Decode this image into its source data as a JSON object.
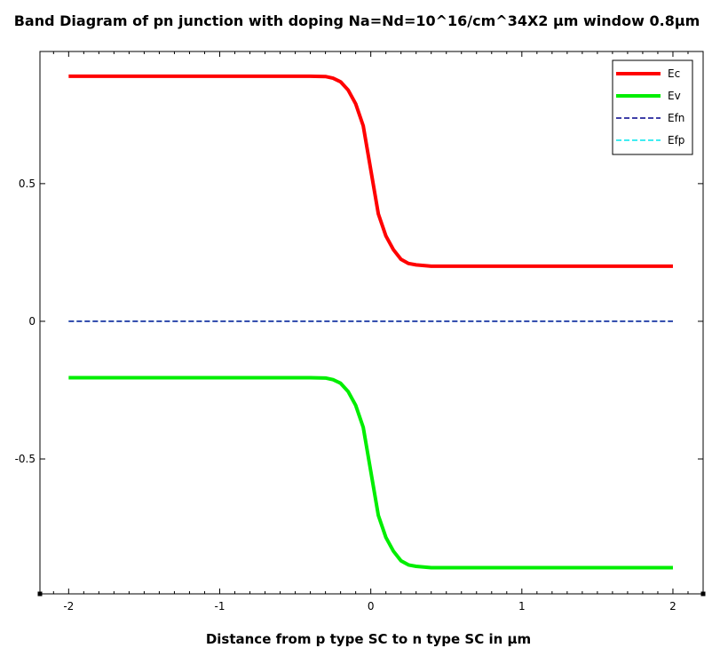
{
  "chart_data": {
    "type": "line",
    "title": "Band Diagram of pn junction with doping Na=Nd=10^16/cm^34X2 μm window 0.8μm",
    "xlabel": "Distance from p type SC to n type SC in μm",
    "ylabel": "",
    "xlim": [
      -2.19,
      2.2
    ],
    "ylim": [
      -0.99,
      0.98
    ],
    "xticks": [
      -2,
      -1,
      0,
      1,
      2
    ],
    "xtick_labels": [
      "-2",
      "-1",
      "0",
      "1",
      "2"
    ],
    "yticks": [
      -0.5,
      0,
      0.5
    ],
    "ytick_labels": [
      "-0.5",
      "0",
      "0.5"
    ],
    "grid": false,
    "legend_position": "top-right",
    "series": [
      {
        "name": "Ec",
        "color": "#ff0000",
        "style": "solid",
        "x": [
          -2.0,
          -1.0,
          -0.4,
          -0.3,
          -0.25,
          -0.2,
          -0.15,
          -0.1,
          -0.05,
          0.0,
          0.05,
          0.1,
          0.15,
          0.2,
          0.25,
          0.3,
          0.4,
          1.0,
          2.0
        ],
        "y": [
          0.89,
          0.89,
          0.89,
          0.889,
          0.883,
          0.87,
          0.84,
          0.79,
          0.71,
          0.55,
          0.39,
          0.31,
          0.26,
          0.225,
          0.21,
          0.205,
          0.2,
          0.2,
          0.2
        ]
      },
      {
        "name": "Ev",
        "color": "#00ee00",
        "style": "solid",
        "x": [
          -2.0,
          -1.0,
          -0.4,
          -0.3,
          -0.25,
          -0.2,
          -0.15,
          -0.1,
          -0.05,
          0.0,
          0.05,
          0.1,
          0.15,
          0.2,
          0.25,
          0.3,
          0.4,
          1.0,
          2.0
        ],
        "y": [
          -0.205,
          -0.205,
          -0.205,
          -0.206,
          -0.212,
          -0.225,
          -0.255,
          -0.305,
          -0.385,
          -0.545,
          -0.705,
          -0.785,
          -0.835,
          -0.87,
          -0.885,
          -0.89,
          -0.895,
          -0.895,
          -0.895
        ]
      },
      {
        "name": "Efn",
        "color": "#00008b",
        "style": "dashed",
        "x": [
          -2.0,
          2.0
        ],
        "y": [
          0.0,
          0.0
        ]
      },
      {
        "name": "Efp",
        "color": "#00e5ee",
        "style": "dashed",
        "x": [
          -2.0,
          2.0
        ],
        "y": [
          0.0,
          0.0
        ]
      }
    ]
  }
}
